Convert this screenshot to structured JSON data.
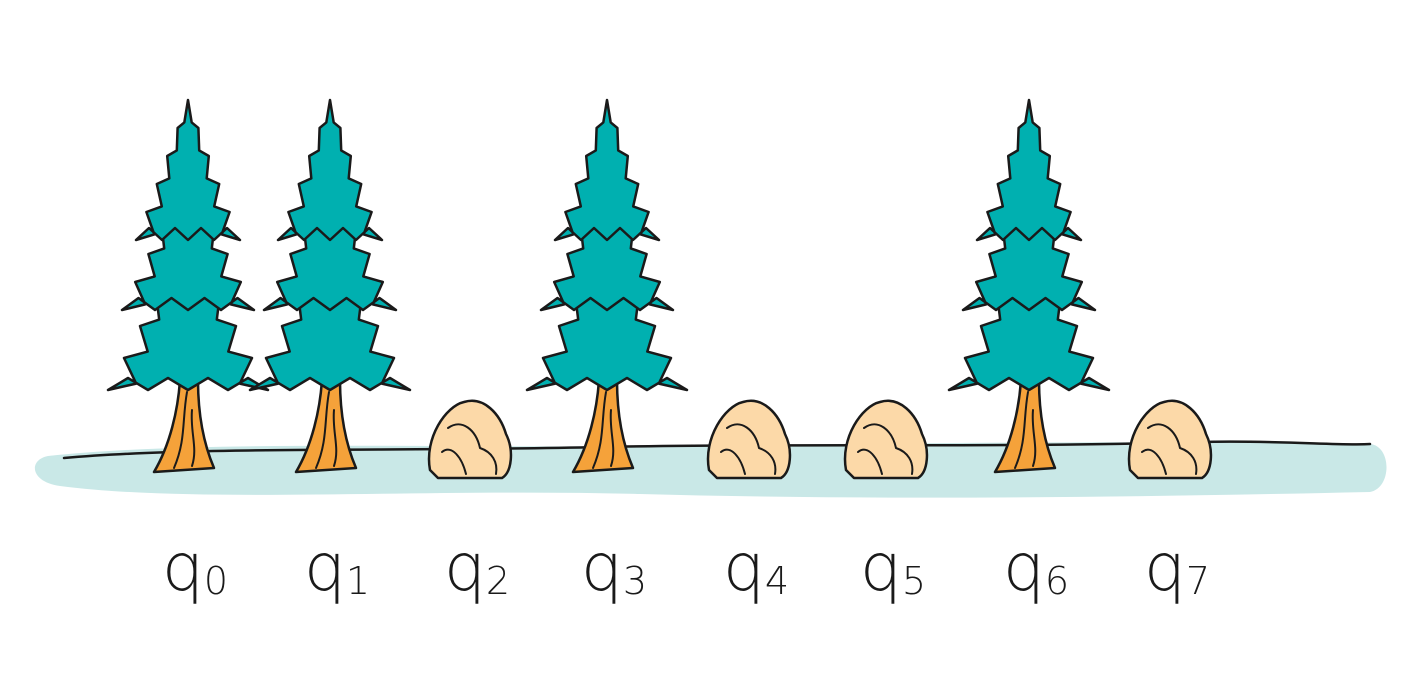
{
  "diagram": {
    "colors": {
      "foliage": "#00b0b0",
      "trunk": "#f5a23a",
      "rock": "#fcd9a8",
      "ground": "#c9e8e7",
      "outline": "#1a1a1a"
    },
    "items": [
      {
        "kind": "tree",
        "label": "q",
        "subscript": "0"
      },
      {
        "kind": "tree",
        "label": "q",
        "subscript": "1"
      },
      {
        "kind": "rock",
        "label": "q",
        "subscript": "2"
      },
      {
        "kind": "tree",
        "label": "q",
        "subscript": "3"
      },
      {
        "kind": "rock",
        "label": "q",
        "subscript": "4"
      },
      {
        "kind": "rock",
        "label": "q",
        "subscript": "5"
      },
      {
        "kind": "tree",
        "label": "q",
        "subscript": "6"
      },
      {
        "kind": "rock",
        "label": "q",
        "subscript": "7"
      }
    ]
  }
}
